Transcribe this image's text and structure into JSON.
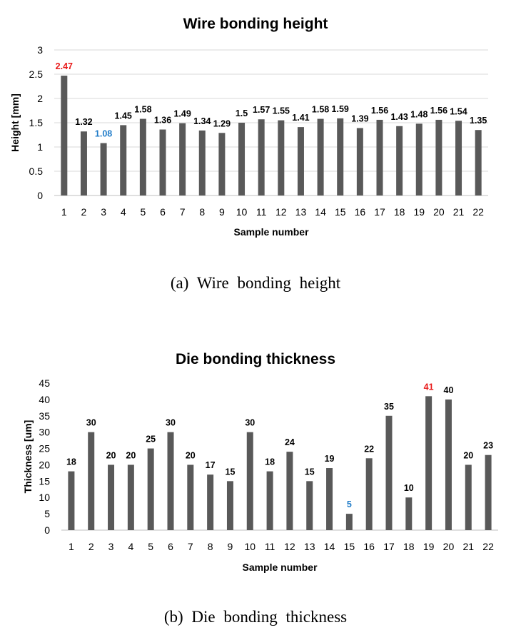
{
  "chart_data": [
    {
      "type": "bar",
      "title": "Wire bonding  height",
      "xlabel": "Sample number",
      "ylabel": "Height [mm]",
      "ylim": [
        0,
        3
      ],
      "yticks": [
        "0",
        "0.5",
        "1",
        "1.5",
        "2",
        "2.5",
        "3"
      ],
      "grid": true,
      "categories": [
        "1",
        "2",
        "3",
        "4",
        "5",
        "6",
        "7",
        "8",
        "9",
        "10",
        "11",
        "12",
        "13",
        "14",
        "15",
        "16",
        "17",
        "18",
        "19",
        "20",
        "21",
        "22"
      ],
      "values": [
        2.47,
        1.32,
        1.08,
        1.45,
        1.58,
        1.36,
        1.49,
        1.34,
        1.29,
        1.5,
        1.57,
        1.55,
        1.41,
        1.58,
        1.59,
        1.39,
        1.56,
        1.43,
        1.48,
        1.56,
        1.54,
        1.35
      ],
      "labels": [
        "2.47",
        "1.32",
        "1.08",
        "1.45",
        "1.58",
        "1.36",
        "1.49",
        "1.34",
        "1.29",
        "1.5",
        "1.57",
        "1.55",
        "1.41",
        "1.58",
        "1.59",
        "1.39",
        "1.56",
        "1.43",
        "1.48",
        "1.56",
        "1.54",
        "1.35"
      ],
      "bar_color": "#595959",
      "label_colors": {
        "0": "#e81a1a",
        "2": "#1f7bc8"
      },
      "caption": "(a)  Wire  bonding  height"
    },
    {
      "type": "bar",
      "title": "Die bonding  thickness",
      "xlabel": "Sample number",
      "ylabel": "Thickness [um]",
      "ylim": [
        0,
        45
      ],
      "yticks": [
        "0",
        "5",
        "10",
        "15",
        "20",
        "25",
        "30",
        "35",
        "40",
        "45"
      ],
      "grid": false,
      "categories": [
        "1",
        "2",
        "3",
        "4",
        "5",
        "6",
        "7",
        "8",
        "9",
        "10",
        "11",
        "12",
        "13",
        "14",
        "15",
        "16",
        "17",
        "18",
        "19",
        "20",
        "21",
        "22"
      ],
      "values": [
        18,
        30,
        20,
        20,
        25,
        30,
        20,
        17,
        15,
        30,
        18,
        24,
        15,
        19,
        5,
        22,
        35,
        10,
        41,
        40,
        20,
        23
      ],
      "labels": [
        "18",
        "30",
        "20",
        "20",
        "25",
        "30",
        "20",
        "17",
        "15",
        "30",
        "18",
        "24",
        "15",
        "19",
        "5",
        "22",
        "35",
        "10",
        "41",
        "40",
        "20",
        "23"
      ],
      "bar_color": "#595959",
      "label_colors": {
        "18": "#e81a1a",
        "14": "#1f7bc8"
      },
      "caption": "(b)  Die  bonding  thickness"
    }
  ]
}
